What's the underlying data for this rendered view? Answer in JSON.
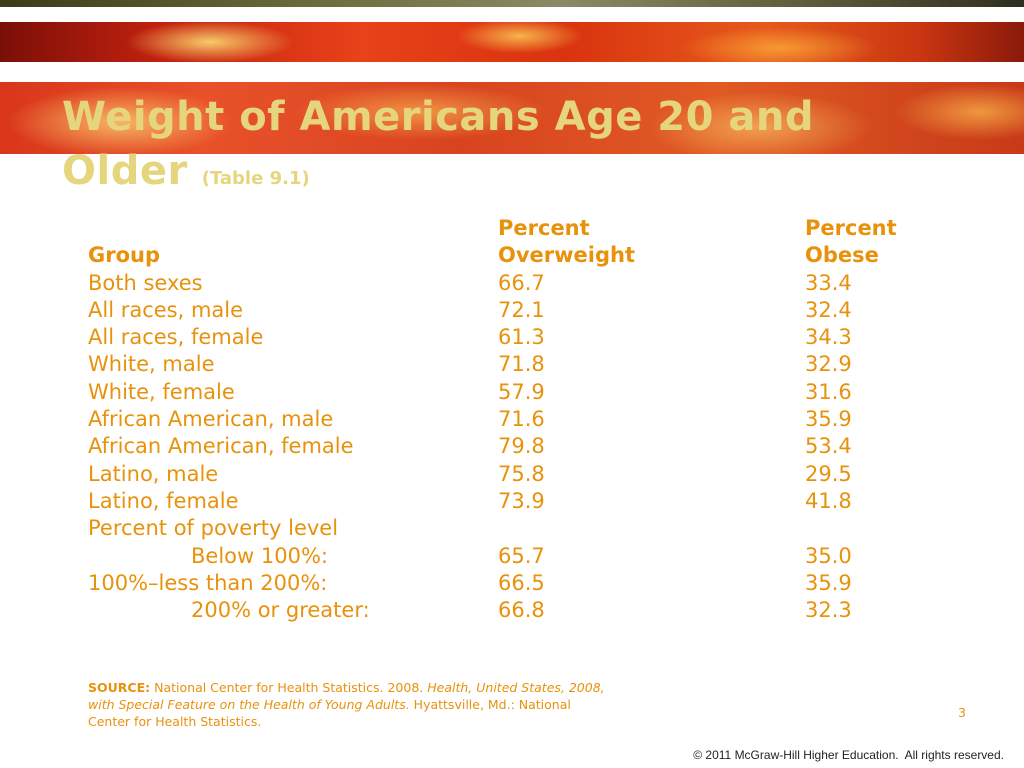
{
  "slide": {
    "title": "Weight of Americans Age 20 and Older",
    "title_reference": "(Table 9.1)",
    "page_number": "3",
    "copyright": "© 2011 McGraw-Hill Higher Education.  All rights reserved."
  },
  "table": {
    "headers": {
      "group": "Group",
      "overweight_line1": "Percent",
      "overweight_line2": "Overweight",
      "obese_line1": "Percent",
      "obese_line2": "Obese"
    },
    "rows": [
      {
        "group": "Both sexes",
        "overweight": "66.7",
        "obese": "33.4"
      },
      {
        "group": "All races, male",
        "overweight": "72.1",
        "obese": "32.4"
      },
      {
        "group": "All races, female",
        "overweight": "61.3",
        "obese": "34.3"
      },
      {
        "group": "White, male",
        "overweight": "71.8",
        "obese": "32.9"
      },
      {
        "group": "White, female",
        "overweight": "57.9",
        "obese": "31.6"
      },
      {
        "group": "African American, male",
        "overweight": "71.6",
        "obese": "35.9"
      },
      {
        "group": "African American, female",
        "overweight": "79.8",
        "obese": "53.4"
      },
      {
        "group": "Latino, male",
        "overweight": "75.8",
        "obese": "29.5"
      },
      {
        "group": "Latino, female",
        "overweight": "73.9",
        "obese": "41.8"
      },
      {
        "group": "Percent of poverty level",
        "overweight": "",
        "obese": ""
      },
      {
        "group": "Below 100%:",
        "overweight": "65.7",
        "obese": "35.0"
      },
      {
        "group": "100%–less than 200%:",
        "overweight": "66.5",
        "obese": "35.9"
      },
      {
        "group": "200% or greater:",
        "overweight": "66.8",
        "obese": "32.3"
      }
    ]
  },
  "source": {
    "label": "SOURCE:",
    "text_plain": "National Center for Health Statistics. 2008.",
    "text_italic": "Health, United States, 2008, with Special Feature on the Health of Young Adults.",
    "text_end": "Hyattsville, Md.: National Center for Health Statistics."
  },
  "colors": {
    "title": "#e5d67e",
    "table_text": "#e8920c",
    "banner": "#d9361a"
  }
}
